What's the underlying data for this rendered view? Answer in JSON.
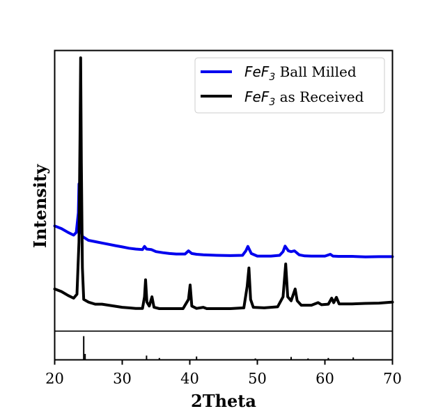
{
  "chart_data": {
    "type": "line",
    "xlabel": "2Theta",
    "ylabel": "Intensity",
    "xlim": [
      20,
      70
    ],
    "xticks": [
      20,
      30,
      40,
      50,
      60,
      70
    ],
    "grid": false,
    "legend_position": "top-right",
    "series": [
      {
        "name": "FeF3 Ball Milled",
        "legend_main": "FeF",
        "legend_sub": "3",
        "legend_rest": " Ball Milled",
        "color": "#0000ee",
        "points": [
          [
            20,
            0.36
          ],
          [
            21,
            0.35
          ],
          [
            22,
            0.335
          ],
          [
            22.8,
            0.325
          ],
          [
            23.2,
            0.335
          ],
          [
            23.5,
            0.41
          ],
          [
            23.6,
            0.52
          ],
          [
            23.7,
            0.47
          ],
          [
            23.85,
            0.36
          ],
          [
            24.1,
            0.32
          ],
          [
            25,
            0.305
          ],
          [
            26,
            0.3
          ],
          [
            27,
            0.295
          ],
          [
            28,
            0.29
          ],
          [
            29,
            0.285
          ],
          [
            30,
            0.28
          ],
          [
            31,
            0.275
          ],
          [
            32,
            0.272
          ],
          [
            33,
            0.27
          ],
          [
            33.3,
            0.282
          ],
          [
            33.6,
            0.272
          ],
          [
            34.3,
            0.27
          ],
          [
            35,
            0.262
          ],
          [
            36,
            0.258
          ],
          [
            37,
            0.255
          ],
          [
            38,
            0.253
          ],
          [
            39.3,
            0.253
          ],
          [
            39.8,
            0.265
          ],
          [
            40.3,
            0.255
          ],
          [
            41,
            0.252
          ],
          [
            42,
            0.25
          ],
          [
            44,
            0.248
          ],
          [
            46,
            0.247
          ],
          [
            47.8,
            0.248
          ],
          [
            48.3,
            0.265
          ],
          [
            48.6,
            0.282
          ],
          [
            49.1,
            0.255
          ],
          [
            50,
            0.245
          ],
          [
            51,
            0.245
          ],
          [
            52,
            0.245
          ],
          [
            53.3,
            0.248
          ],
          [
            53.8,
            0.262
          ],
          [
            54.1,
            0.283
          ],
          [
            54.6,
            0.265
          ],
          [
            55,
            0.262
          ],
          [
            55.5,
            0.265
          ],
          [
            56.2,
            0.25
          ],
          [
            57,
            0.246
          ],
          [
            58,
            0.245
          ],
          [
            60,
            0.245
          ],
          [
            60.8,
            0.252
          ],
          [
            61.2,
            0.245
          ],
          [
            62,
            0.244
          ],
          [
            64,
            0.244
          ],
          [
            66,
            0.242
          ],
          [
            68,
            0.243
          ],
          [
            70,
            0.243
          ]
        ]
      },
      {
        "name": "FeF3 as Received",
        "legend_main": "FeF",
        "legend_sub": "3",
        "legend_rest": " as Received",
        "color": "#000000",
        "points": [
          [
            20,
            0.12
          ],
          [
            21,
            0.11
          ],
          [
            22,
            0.095
          ],
          [
            22.8,
            0.085
          ],
          [
            23.3,
            0.1
          ],
          [
            23.6,
            0.3
          ],
          [
            23.75,
            0.7
          ],
          [
            23.85,
            1.0
          ],
          [
            23.95,
            0.6
          ],
          [
            24.1,
            0.2
          ],
          [
            24.3,
            0.08
          ],
          [
            25,
            0.07
          ],
          [
            26,
            0.062
          ],
          [
            27,
            0.062
          ],
          [
            28,
            0.058
          ],
          [
            29,
            0.054
          ],
          [
            30,
            0.05
          ],
          [
            31,
            0.048
          ],
          [
            32,
            0.046
          ],
          [
            33,
            0.046
          ],
          [
            33.3,
            0.09
          ],
          [
            33.45,
            0.155
          ],
          [
            33.65,
            0.07
          ],
          [
            34,
            0.055
          ],
          [
            34.4,
            0.09
          ],
          [
            34.7,
            0.05
          ],
          [
            35.5,
            0.045
          ],
          [
            37,
            0.045
          ],
          [
            39,
            0.045
          ],
          [
            39.8,
            0.08
          ],
          [
            40.05,
            0.135
          ],
          [
            40.3,
            0.055
          ],
          [
            41,
            0.046
          ],
          [
            42,
            0.05
          ],
          [
            42.5,
            0.045
          ],
          [
            44,
            0.045
          ],
          [
            46,
            0.045
          ],
          [
            48,
            0.048
          ],
          [
            48.5,
            0.13
          ],
          [
            48.75,
            0.2
          ],
          [
            49,
            0.08
          ],
          [
            49.4,
            0.05
          ],
          [
            51,
            0.048
          ],
          [
            53,
            0.052
          ],
          [
            53.8,
            0.09
          ],
          [
            54.2,
            0.215
          ],
          [
            54.5,
            0.09
          ],
          [
            55,
            0.075
          ],
          [
            55.6,
            0.12
          ],
          [
            55.9,
            0.075
          ],
          [
            56.5,
            0.058
          ],
          [
            58,
            0.058
          ],
          [
            59,
            0.068
          ],
          [
            59.5,
            0.06
          ],
          [
            60.5,
            0.062
          ],
          [
            61,
            0.085
          ],
          [
            61.3,
            0.068
          ],
          [
            61.7,
            0.088
          ],
          [
            62.1,
            0.063
          ],
          [
            64,
            0.063
          ],
          [
            66,
            0.065
          ],
          [
            68,
            0.066
          ],
          [
            70,
            0.07
          ]
        ]
      }
    ],
    "reference_sticks": [
      [
        24.3,
        1.0
      ],
      [
        24.5,
        0.25
      ],
      [
        33.6,
        0.18
      ],
      [
        35.5,
        0.08
      ],
      [
        41.0,
        0.14
      ],
      [
        49.7,
        0.06
      ],
      [
        55.0,
        0.12
      ],
      [
        57.5,
        0.06
      ],
      [
        60.5,
        0.08
      ],
      [
        64.2,
        0.1
      ]
    ]
  }
}
